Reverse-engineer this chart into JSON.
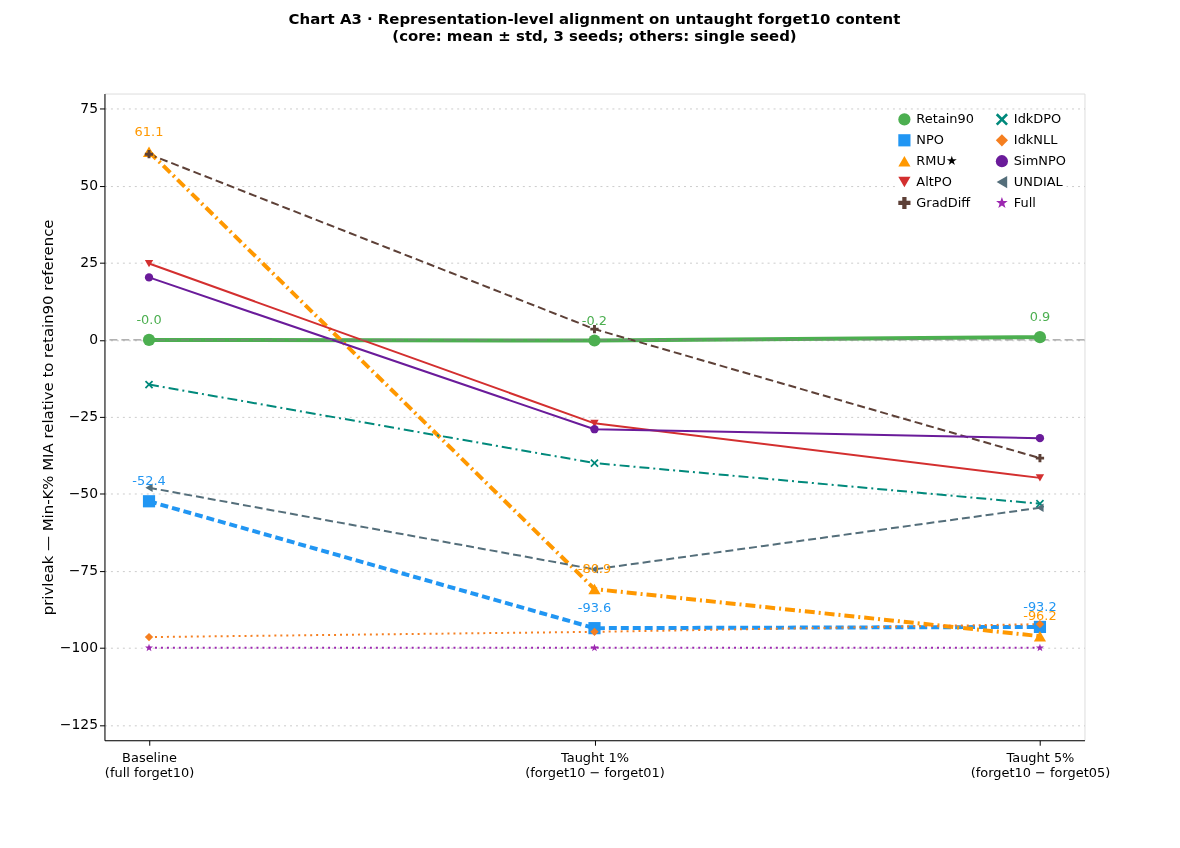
{
  "chart_data": {
    "type": "line",
    "title": "Chart A3 · Representation-level alignment on untaught forget10 content\n(core: mean ± std, 3 seeds; others: single seed)",
    "ylabel": "privleak — Min-K% MIA relative to retain90 reference",
    "categories": [
      "Baseline\n(full forget10)",
      "Taught 1%\n(forget10 − forget01)",
      "Taught 5%\n(forget10 − forget05)"
    ],
    "ylim": [
      -130,
      80
    ],
    "yticks": [
      -125,
      -100,
      -75,
      -50,
      -25,
      0,
      25,
      50,
      75
    ],
    "grid": "y",
    "legend": "top right",
    "ref_lines": [
      {
        "axis": "y",
        "value": 0,
        "color": "#808080",
        "line_style": "dashed"
      }
    ],
    "series": [
      {
        "name": "Retain90",
        "color": "#4caf50",
        "marker": "circle",
        "line_style": "solid",
        "values": [
          0.0,
          -0.2,
          0.9
        ],
        "value_labels": [
          "-0.0",
          "-0.2",
          "0.9"
        ]
      },
      {
        "name": "NPO",
        "color": "#2196f3",
        "marker": "square",
        "line_style": "dashed",
        "values": [
          -52.4,
          -93.6,
          -93.2
        ],
        "value_labels": [
          "-52.4",
          "-93.6",
          "-93.2"
        ]
      },
      {
        "name": "RMU★",
        "color": "#ff9800",
        "marker": "triangle",
        "line_style": "dashdot",
        "values": [
          61.1,
          -80.9,
          -96.2
        ],
        "value_labels": [
          "61.1",
          "-80.9",
          "-96.2"
        ]
      },
      {
        "name": "AltPO",
        "color": "#d32f2f",
        "marker": "triangle-down",
        "line_style": "solid",
        "values": [
          24.8,
          -27.1,
          -44.8
        ]
      },
      {
        "name": "GradDiff",
        "color": "#5d4037",
        "marker": "cross",
        "line_style": "dashed",
        "values": [
          60.3,
          3.5,
          -38.4
        ]
      },
      {
        "name": "IdkDPO",
        "color": "#00897b",
        "marker": "x",
        "line_style": "dashdot",
        "values": [
          -14.5,
          -40,
          -53.2
        ]
      },
      {
        "name": "IdkNLL",
        "color": "#f57f20",
        "marker": "diamond",
        "line_style": "dotted",
        "values": [
          -96.5,
          -94.8,
          -92.3
        ]
      },
      {
        "name": "SimNPO",
        "color": "#6a1b9a",
        "marker": "circle",
        "line_style": "solid",
        "values": [
          20.3,
          -29,
          -31.9
        ]
      },
      {
        "name": "UNDIAL",
        "color": "#546e7a",
        "marker": "triangle-left",
        "line_style": "dashed",
        "values": [
          -48,
          -74.5,
          -54.5
        ]
      },
      {
        "name": "Full",
        "color": "#9c27b0",
        "marker": "star",
        "line_style": "dotted",
        "values": [
          -100,
          -100,
          -100
        ]
      }
    ]
  }
}
